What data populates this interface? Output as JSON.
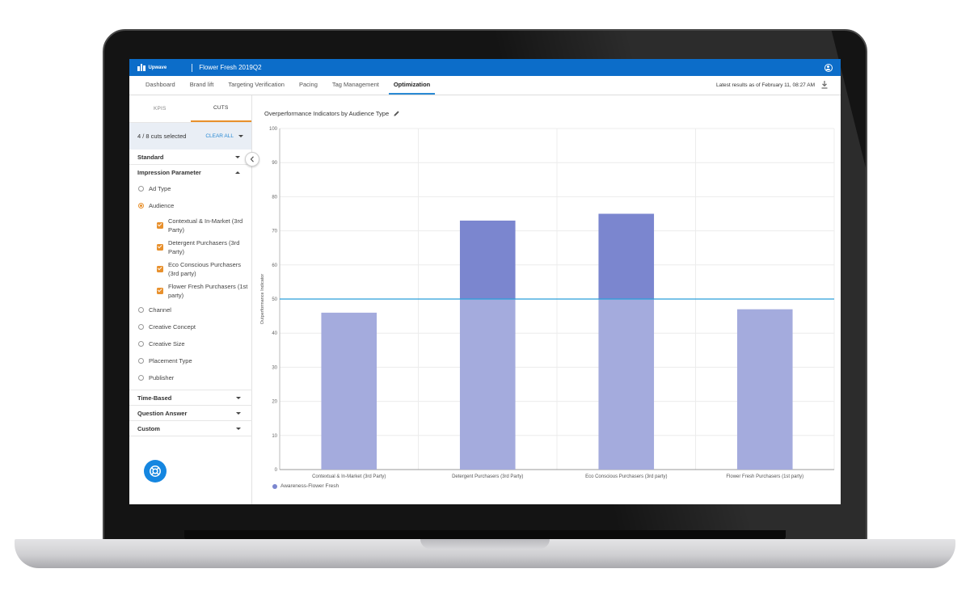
{
  "header": {
    "brand": "Upwave",
    "project_title": "Flower Fresh 2019Q2"
  },
  "nav": {
    "tabs": [
      {
        "label": "Dashboard"
      },
      {
        "label": "Brand lift"
      },
      {
        "label": "Targeting Verification"
      },
      {
        "label": "Pacing"
      },
      {
        "label": "Tag Management"
      },
      {
        "label": "Optimization",
        "active": true
      }
    ],
    "latest_results": "Latest results as of February 11, 08:27 AM",
    "download_icon": "download-icon"
  },
  "sidebar": {
    "tabs": [
      {
        "label": "KPIS"
      },
      {
        "label": "CUTS",
        "active": true
      }
    ],
    "cuts_selected": "4 / 8 cuts selected",
    "clear_all": "CLEAR ALL",
    "sections_top": [
      {
        "label": "Standard"
      },
      {
        "label": "Impression Parameter"
      }
    ],
    "radios": [
      {
        "label": "Ad Type"
      },
      {
        "label": "Audience",
        "selected": true
      },
      {
        "label": "Channel"
      },
      {
        "label": "Creative Concept"
      },
      {
        "label": "Creative Size"
      },
      {
        "label": "Placement Type"
      },
      {
        "label": "Publisher"
      }
    ],
    "audience_checks": [
      {
        "label": "Contextual & In-Market (3rd Party)"
      },
      {
        "label": "Detergent Purchasers (3rd Party)"
      },
      {
        "label": "Eco Conscious Purchasers (3rd party)"
      },
      {
        "label": "Flower Fresh Purchasers (1st party)"
      }
    ],
    "sections_bottom": [
      {
        "label": "Time-Based"
      },
      {
        "label": "Question Answer"
      },
      {
        "label": "Custom"
      }
    ],
    "help_icon": "lifebuoy-icon"
  },
  "main": {
    "chart_title": "Overperformance Indicators by Audience Type"
  },
  "colors": {
    "topbar": "#0c6dc9",
    "accent_orange": "#e8902c",
    "bar_above": "#7b86cf",
    "bar_below": "#a4abdd",
    "threshold_line": "#2a9fdb"
  },
  "chart_data": {
    "type": "bar",
    "title": "Overperformance Indicators by Audience Type",
    "xlabel": "",
    "ylabel": "Outperformance Indicator",
    "categories": [
      "Contextual & In-Market (3rd Party)",
      "Detergent Purchasers (3rd Party)",
      "Eco Conscious Purchasers (3rd party)",
      "Flower Fresh Purchasers (1st party)"
    ],
    "series": [
      {
        "name": "Awareness-Flower Fresh",
        "values": [
          46,
          73,
          75,
          47
        ]
      }
    ],
    "ylim": [
      0,
      100
    ],
    "yticks": [
      0,
      10,
      20,
      30,
      40,
      50,
      60,
      70,
      80,
      90,
      100
    ],
    "reference_line": 50,
    "grid": true,
    "legend": "bottom-left"
  }
}
